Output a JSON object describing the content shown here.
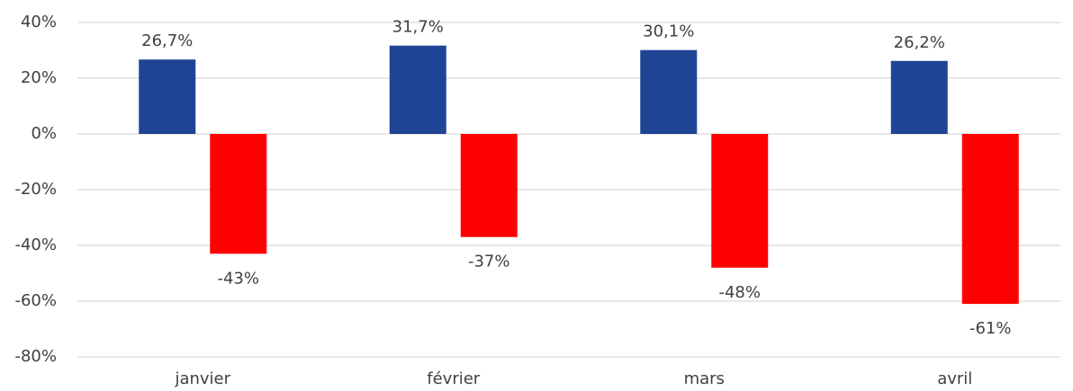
{
  "chart_data": {
    "type": "bar",
    "categories": [
      "janvier",
      "février",
      "mars",
      "avril"
    ],
    "series": [
      {
        "color": "#1f4496",
        "values": [
          26.7,
          31.7,
          30.1,
          26.2
        ],
        "value_labels": [
          "26,7%",
          "31,7%",
          "30,1%",
          "26,2%"
        ]
      },
      {
        "color": "#ff0000",
        "values": [
          -43,
          -37,
          -48,
          -61
        ],
        "value_labels": [
          "-43%",
          "-37%",
          "-48%",
          "-61%"
        ]
      }
    ],
    "ylim": [
      -80,
      40
    ],
    "yticks": [
      {
        "value": 40,
        "label": "40%"
      },
      {
        "value": 20,
        "label": "20%"
      },
      {
        "value": 0,
        "label": "0%"
      },
      {
        "value": -20,
        "label": "-20%"
      },
      {
        "value": -40,
        "label": "-40%"
      },
      {
        "value": -60,
        "label": "-60%"
      },
      {
        "value": -80,
        "label": "-80%"
      }
    ],
    "grid": true
  }
}
